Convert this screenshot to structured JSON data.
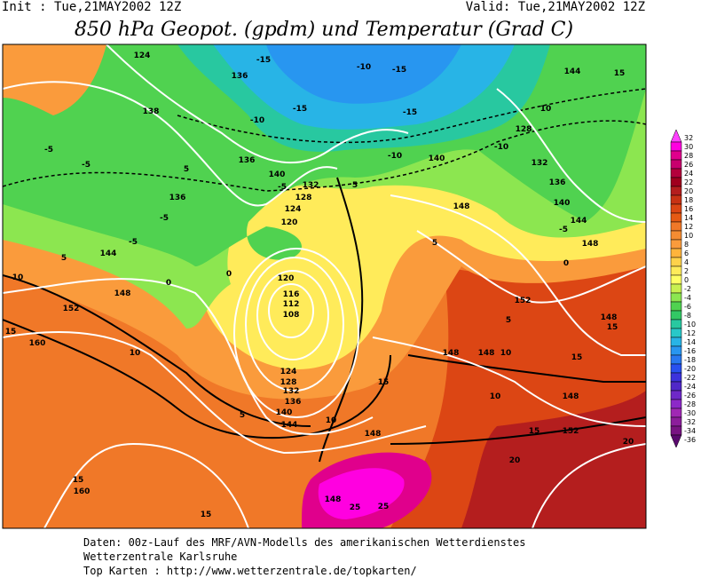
{
  "header": {
    "init": "Init : Tue,21MAY2002 12Z",
    "valid": "Valid: Tue,21MAY2002 12Z",
    "title": "850 hPa Geopot. (gpdm) und Temperatur (Grad C)"
  },
  "colorbar": {
    "labels": [
      "32",
      "30",
      "28",
      "26",
      "24",
      "22",
      "20",
      "18",
      "16",
      "14",
      "12",
      "10",
      "8",
      "6",
      "4",
      "2",
      "0",
      "-2",
      "-4",
      "-6",
      "-8",
      "-10",
      "-12",
      "-14",
      "-16",
      "-18",
      "-20",
      "-22",
      "-24",
      "-26",
      "-28",
      "-30",
      "-32",
      "-34",
      "-36"
    ],
    "colors": [
      "#ff40ff",
      "#ff00e0",
      "#e0008c",
      "#c8006e",
      "#b4003c",
      "#a0001e",
      "#b41e1e",
      "#c83214",
      "#dc4614",
      "#e65a14",
      "#f07828",
      "#f58c32",
      "#fa9b3c",
      "#ffb43c",
      "#ffd24b",
      "#ffeb5a",
      "#ffff64",
      "#c8f050",
      "#8ce650",
      "#50d250",
      "#32c864",
      "#28c8a0",
      "#28c8c8",
      "#28b4e6",
      "#2896f0",
      "#2878f0",
      "#2850f0",
      "#3c32dc",
      "#5028c8",
      "#6e28c8",
      "#8c28c8",
      "#a028b4",
      "#8c1e9b",
      "#781482",
      "#5a0a6e"
    ]
  },
  "map_labels": [
    "124",
    "136",
    "-15",
    "-10",
    "-15",
    "138",
    "-10",
    "-15",
    "-15",
    "-5",
    "-5",
    "5",
    "136",
    "140",
    "-5",
    "132",
    "128",
    "124",
    "120",
    "136",
    "-5",
    "-5",
    "144",
    "5",
    "10",
    "148",
    "152",
    "0",
    "0",
    "120",
    "116",
    "112",
    "108",
    "-10",
    "140",
    "5",
    "148",
    "5",
    "132",
    "128",
    "136",
    "140",
    "144",
    "-5",
    "148",
    "144",
    "15",
    "10",
    "-10",
    "0",
    "152",
    "148",
    "15",
    "5",
    "15",
    "160",
    "10",
    "148",
    "148",
    "10",
    "15",
    "124",
    "128",
    "132",
    "136",
    "140",
    "144",
    "5",
    "10",
    "15",
    "10",
    "148",
    "148",
    "15",
    "152",
    "20",
    "20",
    "15",
    "160",
    "148",
    "25",
    "25",
    "15"
  ],
  "footer": [
    "Daten: 00z-Lauf des MRF/AVN-Modells des amerikanischen Wetterdienstes",
    "Wetterzentrale Karlsruhe",
    "Top Karten :  http://www.wetterzentrale.de/topkarten/"
  ]
}
